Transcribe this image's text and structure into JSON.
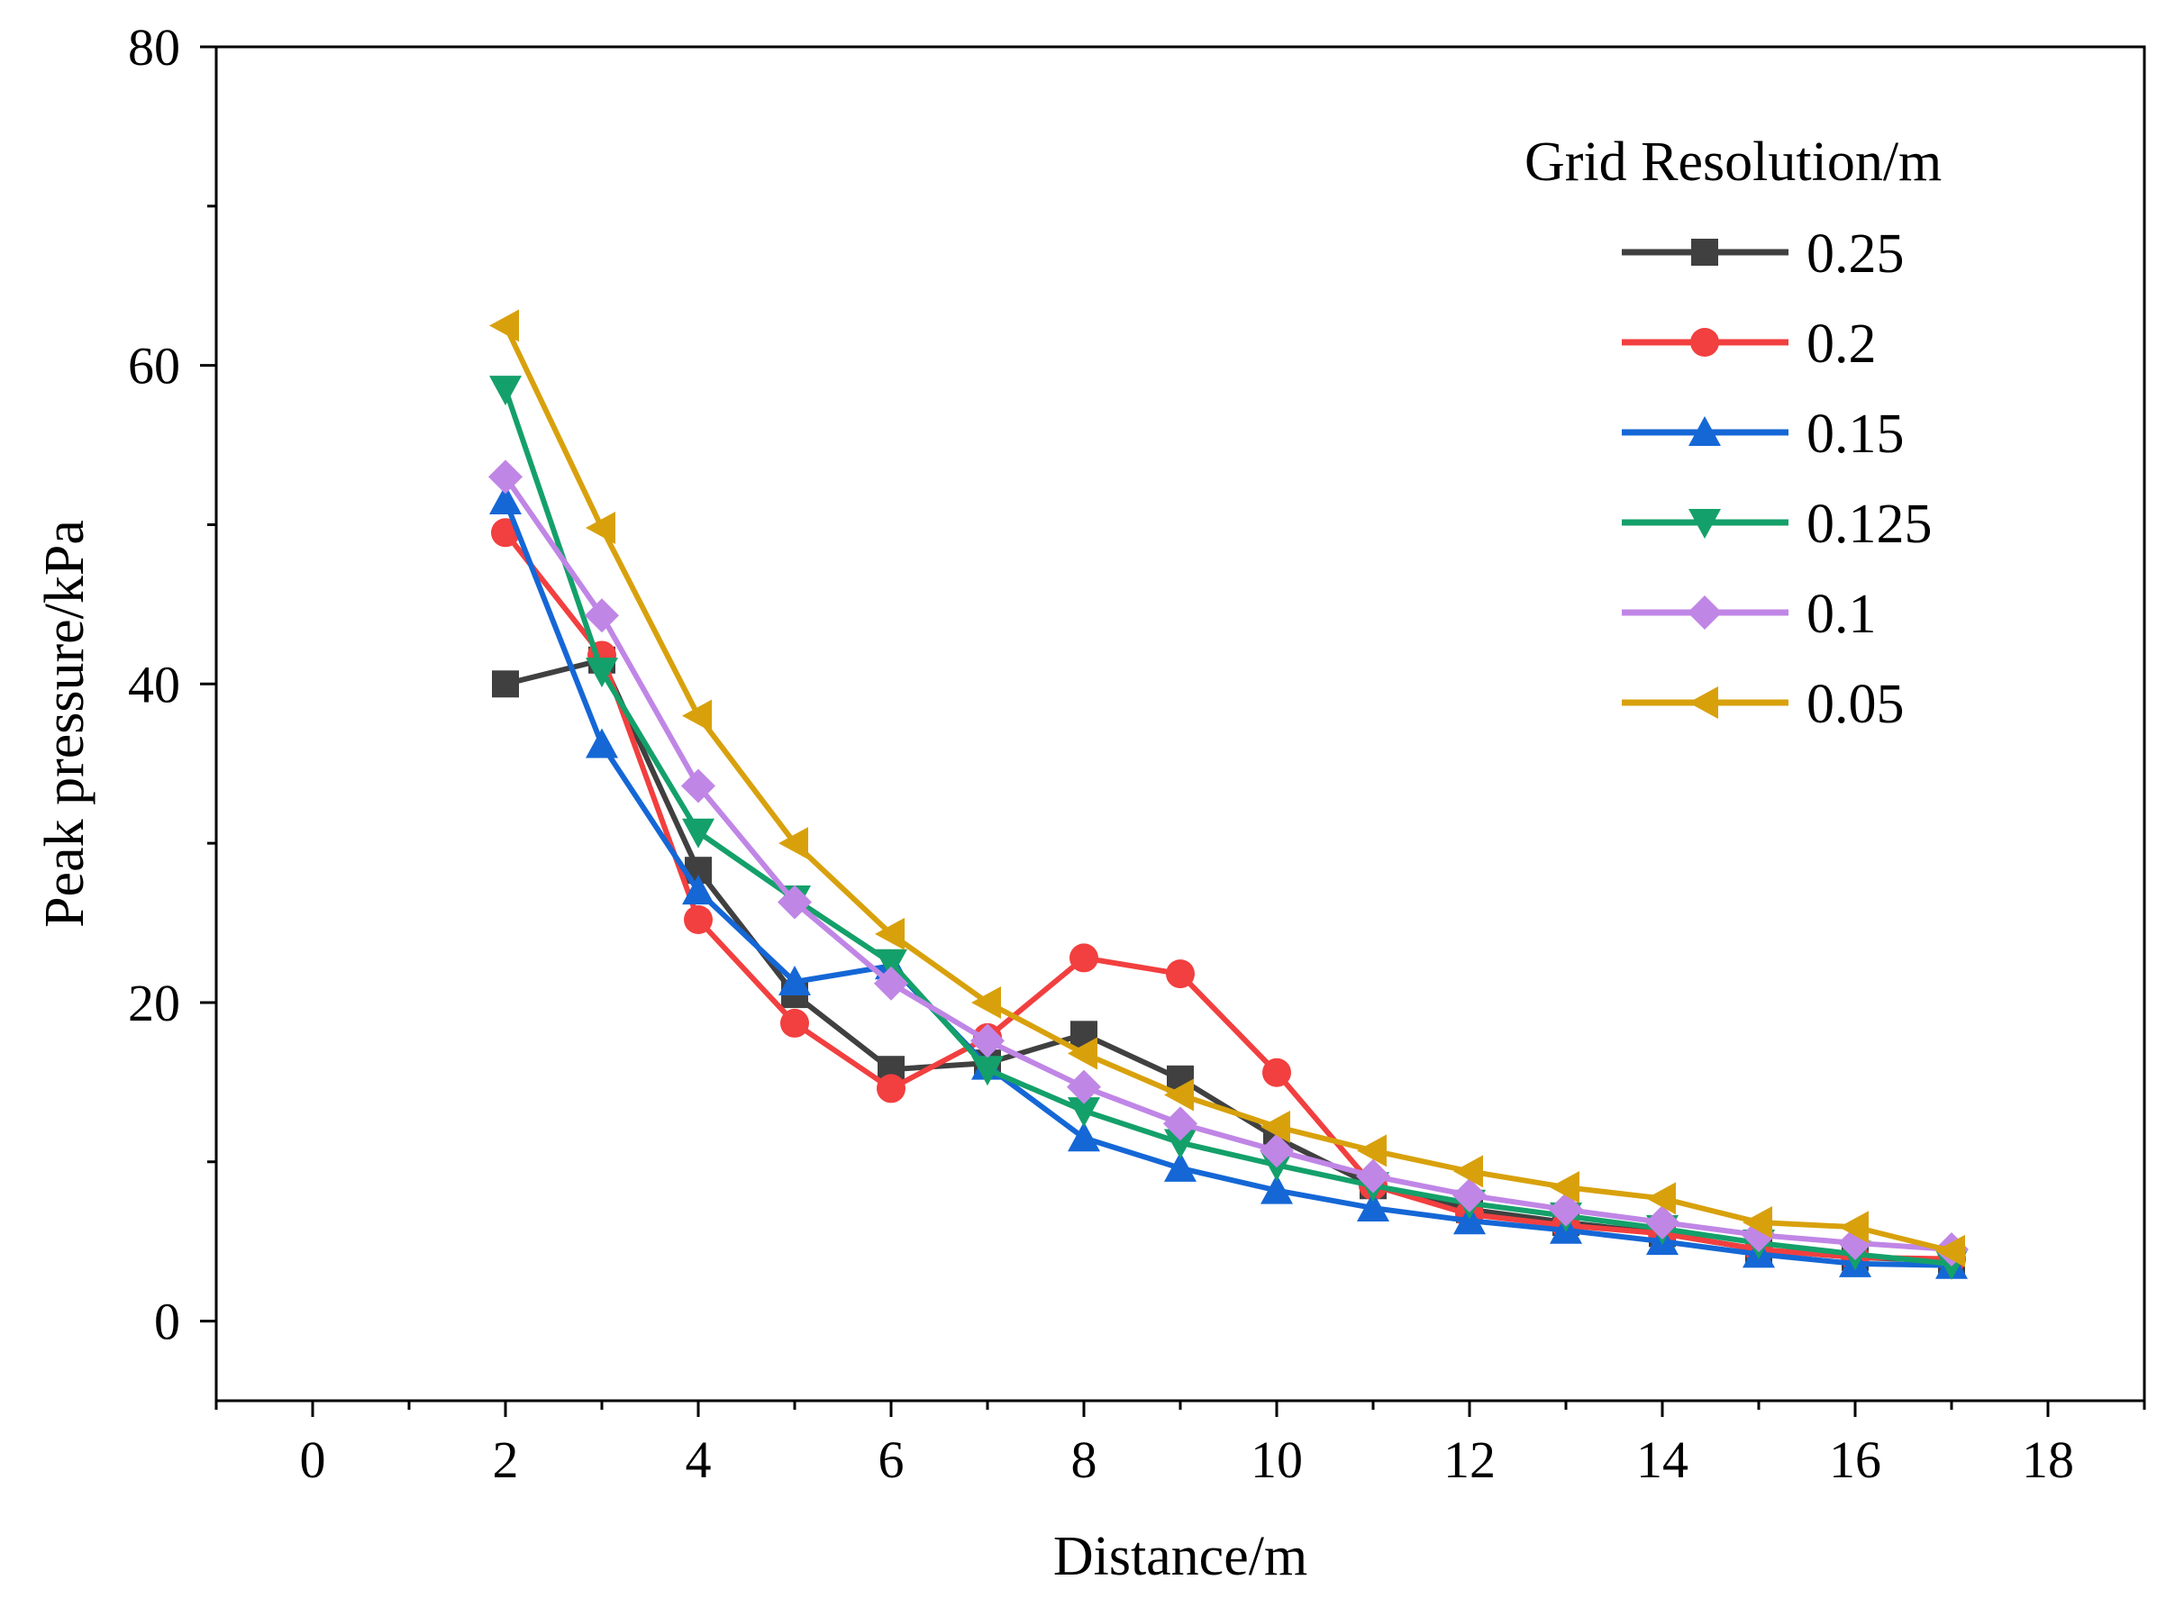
{
  "chart_data": {
    "type": "line",
    "title": "",
    "xlabel": "Distance/m",
    "ylabel": "Peak pressure/kPa",
    "xlim": [
      -1,
      19
    ],
    "ylim": [
      -5,
      80
    ],
    "xticks": [
      0,
      2,
      4,
      6,
      8,
      10,
      12,
      14,
      16,
      18
    ],
    "yticks": [
      0,
      20,
      40,
      60,
      80
    ],
    "legend_title": "Grid Resolution/m",
    "legend_position": "top-right",
    "x": [
      2,
      3,
      4,
      5,
      6,
      7,
      8,
      9,
      10,
      11,
      12,
      13,
      14,
      15,
      16,
      17
    ],
    "series": [
      {
        "name": "0.25",
        "color": "#404040",
        "marker": "square",
        "values": [
          40.0,
          41.5,
          28.3,
          20.5,
          15.8,
          16.2,
          18.0,
          15.2,
          11.5,
          8.5,
          7.0,
          6.2,
          5.5,
          4.5,
          4.0,
          3.8
        ]
      },
      {
        "name": "0.2",
        "color": "#f23f3f",
        "marker": "circle",
        "values": [
          49.5,
          41.8,
          25.2,
          18.7,
          14.6,
          17.8,
          22.8,
          21.8,
          15.6,
          8.5,
          6.7,
          6.0,
          5.5,
          4.5,
          4.0,
          3.9
        ]
      },
      {
        "name": "0.15",
        "color": "#1567d6",
        "marker": "triangle-up",
        "values": [
          51.5,
          36.2,
          27.0,
          21.3,
          22.3,
          16.0,
          11.5,
          9.6,
          8.2,
          7.1,
          6.3,
          5.7,
          5.0,
          4.2,
          3.6,
          3.5
        ]
      },
      {
        "name": "0.125",
        "color": "#14a06a",
        "marker": "triangle-down",
        "values": [
          58.5,
          40.8,
          30.7,
          26.5,
          22.5,
          15.8,
          13.2,
          11.2,
          9.8,
          8.5,
          7.4,
          6.6,
          5.8,
          4.9,
          4.2,
          3.6
        ]
      },
      {
        "name": "0.1",
        "color": "#c086e6",
        "marker": "diamond",
        "values": [
          53.0,
          44.3,
          33.6,
          26.3,
          21.2,
          17.6,
          14.7,
          12.4,
          10.7,
          9.1,
          7.9,
          7.0,
          6.2,
          5.4,
          4.9,
          4.5
        ]
      },
      {
        "name": "0.05",
        "color": "#d8a10c",
        "marker": "triangle-left",
        "values": [
          62.5,
          49.8,
          38.0,
          30.0,
          24.3,
          20.0,
          16.8,
          14.2,
          12.2,
          10.7,
          9.4,
          8.4,
          7.7,
          6.2,
          5.9,
          4.4
        ]
      }
    ]
  }
}
